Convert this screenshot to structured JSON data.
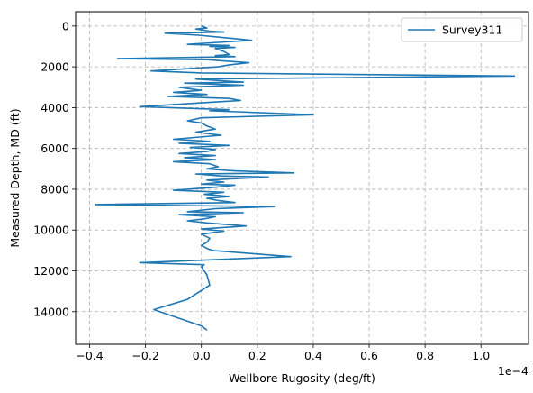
{
  "chart_data": {
    "type": "line",
    "xlabel": "Wellbore Rugosity (deg/ft)",
    "ylabel": "Measured Depth, MD (ft)",
    "x_offset_label": "1e−4",
    "x_scale_multiplier": 0.0001,
    "xlim": [
      -0.45,
      1.17
    ],
    "ylim": [
      15600,
      -700
    ],
    "y_inverted": true,
    "grid": true,
    "grid_style": "dashed",
    "legend_position": "top-right",
    "xticks": [
      -0.4,
      -0.2,
      0.0,
      0.2,
      0.4,
      0.6,
      0.8,
      1.0
    ],
    "xtick_labels": [
      "−0.4",
      "−0.2",
      "0.0",
      "0.2",
      "0.4",
      "0.6",
      "0.8",
      "1.0"
    ],
    "yticks": [
      0,
      2000,
      4000,
      6000,
      8000,
      10000,
      12000,
      14000
    ],
    "ytick_labels": [
      "0",
      "2000",
      "4000",
      "6000",
      "8000",
      "10000",
      "12000",
      "14000"
    ],
    "series": [
      {
        "name": "Survey311",
        "color": "#1f77b4",
        "points": [
          [
            0.0,
            0
          ],
          [
            0.02,
            100
          ],
          [
            -0.02,
            150
          ],
          [
            0.03,
            250
          ],
          [
            0.08,
            300
          ],
          [
            -0.13,
            350
          ],
          [
            -0.01,
            450
          ],
          [
            0.18,
            700
          ],
          [
            0.06,
            800
          ],
          [
            -0.05,
            900
          ],
          [
            0.1,
            950
          ],
          [
            0.03,
            1000
          ],
          [
            0.12,
            1050
          ],
          [
            0.05,
            1100
          ],
          [
            0.08,
            1250
          ],
          [
            0.1,
            1400
          ],
          [
            0.05,
            1450
          ],
          [
            0.12,
            1500
          ],
          [
            -0.3,
            1600
          ],
          [
            0.02,
            1650
          ],
          [
            0.17,
            1800
          ],
          [
            0.1,
            1900
          ],
          [
            0.06,
            2000
          ],
          [
            -0.18,
            2200
          ],
          [
            0.0,
            2300
          ],
          [
            1.12,
            2450
          ],
          [
            -0.02,
            2600
          ],
          [
            0.15,
            2750
          ],
          [
            -0.06,
            2800
          ],
          [
            0.15,
            2900
          ],
          [
            -0.08,
            3000
          ],
          [
            0.0,
            3150
          ],
          [
            -0.1,
            3250
          ],
          [
            0.02,
            3350
          ],
          [
            -0.12,
            3450
          ],
          [
            0.1,
            3550
          ],
          [
            0.14,
            3650
          ],
          [
            0.02,
            3750
          ],
          [
            -0.22,
            3950
          ],
          [
            0.1,
            4100
          ],
          [
            0.03,
            4150
          ],
          [
            0.4,
            4350
          ],
          [
            0.0,
            4500
          ],
          [
            -0.05,
            4650
          ],
          [
            0.0,
            4750
          ],
          [
            0.02,
            4900
          ],
          [
            0.05,
            5050
          ],
          [
            -0.02,
            5200
          ],
          [
            0.07,
            5350
          ],
          [
            -0.1,
            5550
          ],
          [
            0.03,
            5650
          ],
          [
            -0.08,
            5750
          ],
          [
            0.1,
            5850
          ],
          [
            -0.04,
            5950
          ],
          [
            0.05,
            6050
          ],
          [
            0.02,
            6150
          ],
          [
            -0.08,
            6250
          ],
          [
            0.05,
            6350
          ],
          [
            -0.06,
            6450
          ],
          [
            0.05,
            6550
          ],
          [
            -0.1,
            6650
          ],
          [
            0.03,
            6750
          ],
          [
            0.06,
            6900
          ],
          [
            0.02,
            7000
          ],
          [
            0.12,
            7100
          ],
          [
            0.33,
            7200
          ],
          [
            -0.02,
            7250
          ],
          [
            0.07,
            7350
          ],
          [
            0.24,
            7400
          ],
          [
            0.02,
            7550
          ],
          [
            0.08,
            7650
          ],
          [
            0.0,
            7750
          ],
          [
            0.12,
            7800
          ],
          [
            0.05,
            7900
          ],
          [
            -0.1,
            8050
          ],
          [
            0.08,
            8150
          ],
          [
            0.01,
            8250
          ],
          [
            0.1,
            8350
          ],
          [
            0.02,
            8450
          ],
          [
            0.06,
            8550
          ],
          [
            0.12,
            8650
          ],
          [
            -0.38,
            8750
          ],
          [
            0.26,
            8850
          ],
          [
            0.05,
            8950
          ],
          [
            -0.05,
            9100
          ],
          [
            0.15,
            9150
          ],
          [
            -0.08,
            9250
          ],
          [
            0.05,
            9350
          ],
          [
            0.01,
            9450
          ],
          [
            -0.05,
            9550
          ],
          [
            0.02,
            9650
          ],
          [
            0.16,
            9800
          ],
          [
            0.0,
            9950
          ],
          [
            0.08,
            10050
          ],
          [
            0.0,
            10200
          ],
          [
            0.03,
            10400
          ],
          [
            0.02,
            10600
          ],
          [
            0.0,
            10750
          ],
          [
            0.02,
            10900
          ],
          [
            0.04,
            11000
          ],
          [
            0.32,
            11300
          ],
          [
            -0.22,
            11600
          ],
          [
            0.01,
            11700
          ],
          [
            0.0,
            11800
          ],
          [
            0.02,
            12200
          ],
          [
            0.03,
            12700
          ],
          [
            -0.05,
            13400
          ],
          [
            -0.17,
            13900
          ],
          [
            0.0,
            14700
          ],
          [
            0.02,
            14900
          ]
        ]
      }
    ]
  }
}
